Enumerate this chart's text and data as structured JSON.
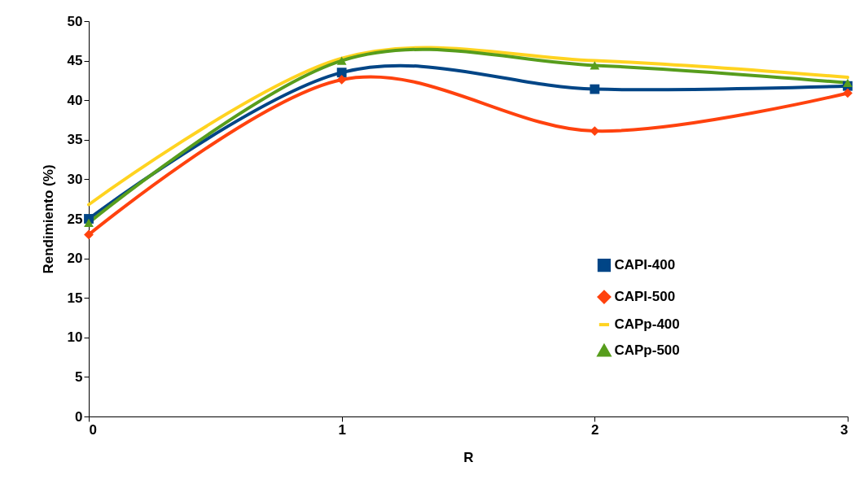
{
  "chart_data": {
    "type": "line",
    "xlabel": "R",
    "ylabel": "Rendimiento (%)",
    "x": [
      0,
      1,
      2,
      3
    ],
    "series": [
      {
        "name": "CAPI-400",
        "color": "#004586",
        "marker": "square",
        "values": [
          25,
          43.5,
          41.4,
          41.8
        ]
      },
      {
        "name": "CAPI-500",
        "color": "#ff420e",
        "marker": "diamond",
        "values": [
          23,
          42.6,
          36.1,
          40.9
        ]
      },
      {
        "name": "CAPp-400",
        "color": "#ffd320",
        "marker": "none",
        "values": [
          26.8,
          45.3,
          45,
          42.9
        ]
      },
      {
        "name": "CAPp-500",
        "color": "#579d1c",
        "marker": "triangle",
        "values": [
          24.5,
          45,
          44.4,
          42.2
        ]
      }
    ],
    "xlim": [
      0,
      3
    ],
    "xticks": [
      0,
      1,
      2,
      3
    ],
    "ylim": [
      0,
      50
    ],
    "yticks": [
      0,
      5,
      10,
      15,
      20,
      25,
      30,
      35,
      40,
      45,
      50
    ],
    "grid": false,
    "legend": "bottom right"
  }
}
